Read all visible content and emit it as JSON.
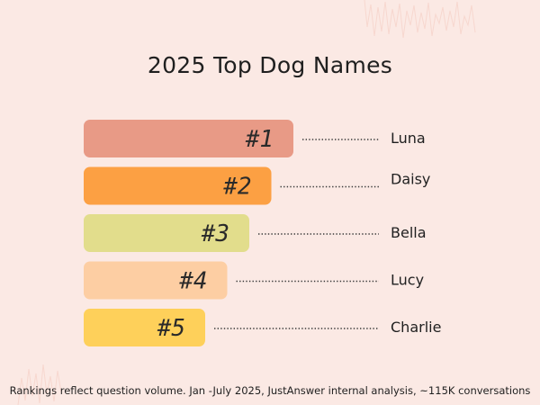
{
  "colors": {
    "background": "#fbe9e4",
    "bars": [
      "#e89a86",
      "#fca043",
      "#e2dd8c",
      "#fdcea3",
      "#fed05a"
    ]
  },
  "chart_data": {
    "type": "bar",
    "orientation": "horizontal",
    "title": "2025 Top Dog Names",
    "footnote": "Rankings reflect question volume. Jan -July 2025, JustAnswer internal analysis, ~115K conversations",
    "categories": [
      "Luna",
      "Daisy",
      "Bella",
      "Lucy",
      "Charlie"
    ],
    "values": [
      1,
      2,
      3,
      4,
      5
    ],
    "labels": [
      "#1",
      "#2",
      "#3",
      "#4",
      "#5"
    ],
    "xlabel": "",
    "ylabel": "",
    "grid": false,
    "legend": "none"
  }
}
